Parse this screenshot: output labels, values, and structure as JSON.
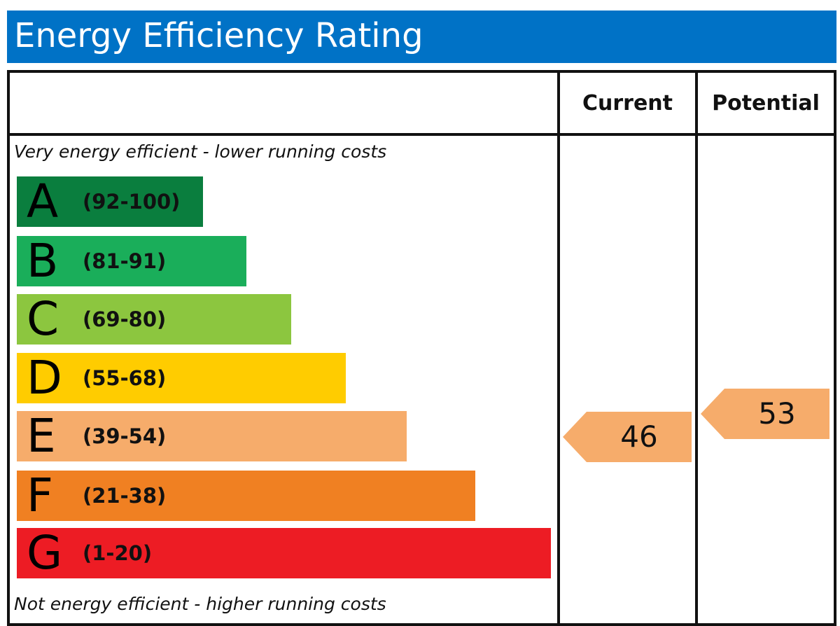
{
  "title": "Energy Efficiency Rating",
  "columns": {
    "current": "Current",
    "potential": "Potential"
  },
  "captions": {
    "top": "Very energy efficient - lower running costs",
    "bottom": "Not energy efficient - higher running costs"
  },
  "chart_data": {
    "type": "bar",
    "title": "Energy Efficiency Rating",
    "categories": [
      "A",
      "B",
      "C",
      "D",
      "E",
      "F",
      "G"
    ],
    "bands": [
      {
        "letter": "A",
        "range": "(92-100)",
        "min": 92,
        "max": 100,
        "color": "#0a7e3e"
      },
      {
        "letter": "B",
        "range": "(81-91)",
        "min": 81,
        "max": 91,
        "color": "#1aae5a"
      },
      {
        "letter": "C",
        "range": "(69-80)",
        "min": 69,
        "max": 80,
        "color": "#8cc63f"
      },
      {
        "letter": "D",
        "range": "(55-68)",
        "min": 55,
        "max": 68,
        "color": "#ffcc00"
      },
      {
        "letter": "E",
        "range": "(39-54)",
        "min": 39,
        "max": 54,
        "color": "#f6ac6b"
      },
      {
        "letter": "F",
        "range": "(21-38)",
        "min": 21,
        "max": 38,
        "color": "#f08022"
      },
      {
        "letter": "G",
        "range": "(1-20)",
        "min": 1,
        "max": 20,
        "color": "#ed1c24"
      }
    ],
    "series": [
      {
        "name": "Current",
        "value": 46,
        "band": "E",
        "color": "#f6ac6b"
      },
      {
        "name": "Potential",
        "value": 53,
        "band": "E",
        "color": "#f6ac6b"
      }
    ]
  }
}
